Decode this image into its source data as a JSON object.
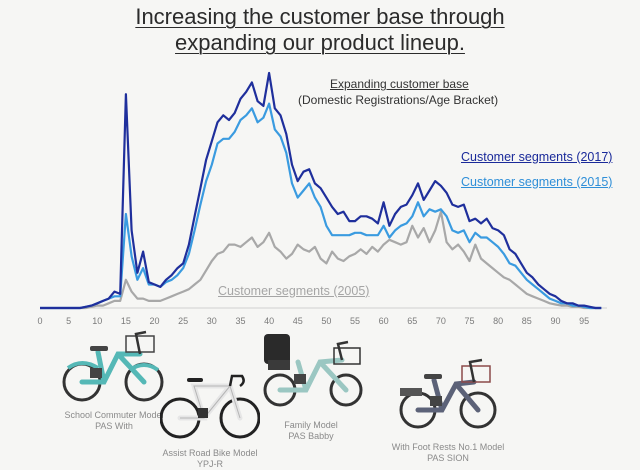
{
  "title": {
    "line1": "Increasing the customer base through",
    "line2": "expanding our product lineup."
  },
  "annotation": {
    "title": "Expanding customer base",
    "subtitle": "(Domestic Registrations/Age Bracket)"
  },
  "colors": {
    "s2017": "#1f2f9c",
    "s2015": "#3a9be0",
    "s2005": "#a8a8a8",
    "axis": "#7a7a7a"
  },
  "chart_data": {
    "type": "line",
    "title": "Expanding customer base",
    "subtitle": "(Domestic Registrations/Age Bracket)",
    "xlim": [
      0,
      99
    ],
    "xticks": [
      0,
      5,
      10,
      15,
      20,
      25,
      30,
      35,
      40,
      45,
      50,
      55,
      60,
      65,
      70,
      75,
      80,
      85,
      90,
      95
    ],
    "ylim": [
      0,
      100
    ],
    "x": [
      0,
      1,
      2,
      3,
      4,
      5,
      6,
      7,
      8,
      9,
      10,
      11,
      12,
      13,
      14,
      15,
      16,
      17,
      18,
      19,
      20,
      21,
      22,
      23,
      24,
      25,
      26,
      27,
      28,
      29,
      30,
      31,
      32,
      33,
      34,
      35,
      36,
      37,
      38,
      39,
      40,
      41,
      42,
      43,
      44,
      45,
      46,
      47,
      48,
      49,
      50,
      51,
      52,
      53,
      54,
      55,
      56,
      57,
      58,
      59,
      60,
      61,
      62,
      63,
      64,
      65,
      66,
      67,
      68,
      69,
      70,
      71,
      72,
      73,
      74,
      75,
      76,
      77,
      78,
      79,
      80,
      81,
      82,
      83,
      84,
      85,
      86,
      87,
      88,
      89,
      90,
      91,
      92,
      93,
      94,
      95,
      96,
      97,
      98
    ],
    "series": [
      {
        "name": "Customer segments (2017)",
        "values": [
          0,
          0,
          0,
          0,
          0,
          0,
          0,
          0,
          0.5,
          1,
          2,
          3,
          4,
          7,
          6,
          91,
          33,
          15,
          24,
          11,
          10,
          9,
          12,
          14,
          17,
          19,
          27,
          39,
          51,
          63,
          71,
          79,
          82,
          80,
          83,
          89,
          92,
          96,
          88,
          86,
          100,
          85,
          82,
          74,
          61,
          54,
          58,
          59,
          53,
          51,
          47,
          43,
          40,
          41,
          37,
          37,
          39,
          39,
          38,
          36,
          45,
          35,
          40,
          43,
          44,
          48,
          53,
          46,
          50,
          54,
          52,
          49,
          44,
          43,
          44,
          37,
          38,
          36,
          38,
          34,
          33,
          31,
          25,
          23,
          19,
          15,
          13,
          10,
          8,
          6,
          5,
          3,
          2,
          2,
          1,
          1,
          0.5,
          0,
          0
        ]
      },
      {
        "name": "Customer segments (2015)",
        "values": [
          0,
          0,
          0,
          0,
          0,
          0,
          0,
          0,
          0.5,
          1,
          2,
          3,
          4,
          5,
          5,
          40,
          22,
          12,
          17,
          10,
          10,
          9,
          11,
          12,
          14,
          17,
          23,
          33,
          44,
          54,
          61,
          70,
          72,
          72,
          75,
          80,
          82,
          85,
          79,
          81,
          87,
          76,
          73,
          66,
          53,
          47,
          50,
          53,
          47,
          43,
          35,
          31,
          31,
          31,
          31,
          32,
          32,
          31,
          31,
          31,
          35,
          30,
          33,
          35,
          36,
          39,
          45,
          39,
          42,
          41,
          42,
          39,
          33,
          32,
          33,
          28,
          32,
          30,
          30,
          28,
          26,
          23,
          19,
          18,
          15,
          12,
          10,
          8,
          6,
          4,
          3,
          2,
          2,
          1,
          1,
          0.5,
          0,
          0,
          0
        ]
      },
      {
        "name": "Customer segments (2005)",
        "values": [
          0,
          0,
          0,
          0,
          0,
          0,
          0,
          0,
          0,
          0.5,
          1,
          1,
          2,
          3,
          3,
          12,
          7,
          4,
          4,
          3,
          3,
          3,
          4,
          5,
          6,
          7,
          8,
          10,
          12,
          16,
          20,
          23,
          24,
          27,
          27,
          26,
          28,
          30,
          26,
          28,
          32,
          26,
          24,
          21,
          23,
          27,
          25,
          24,
          26,
          21,
          19,
          24,
          21,
          20,
          22,
          23,
          25,
          23,
          26,
          24,
          27,
          29,
          28,
          27,
          28,
          35,
          30,
          34,
          28,
          33,
          41,
          28,
          25,
          27,
          24,
          20,
          27,
          21,
          19,
          17,
          15,
          13,
          12,
          10,
          8,
          6,
          5,
          4,
          3,
          2,
          1.5,
          1,
          1,
          0.5,
          0.5,
          0,
          0,
          0,
          0
        ]
      }
    ]
  },
  "products": [
    {
      "caption1": "School Commuter Model",
      "caption2": "PAS With",
      "color": "#55b8b6"
    },
    {
      "caption1": "Assist Road Bike Model",
      "caption2": "YPJ-R",
      "color": "#dcdcdc"
    },
    {
      "caption1": "Family Model",
      "caption2": "PAS Babby",
      "color": "#4d5c52"
    },
    {
      "caption1": "With Foot Rests No.1 Model",
      "caption2": "PAS SION",
      "color": "#6a6f82"
    }
  ]
}
